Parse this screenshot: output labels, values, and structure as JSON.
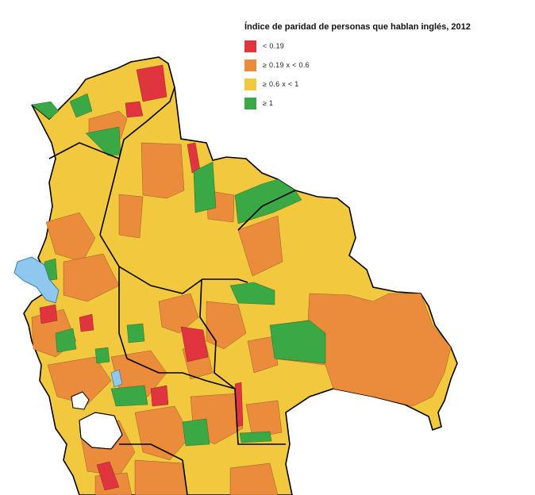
{
  "legend": {
    "title": "Índice de paridad de personas que hablan inglés, 2012",
    "items": [
      {
        "label": "< 0.19",
        "color": "#e0353f"
      },
      {
        "label": "≥ 0.19 x < 0.6",
        "color": "#eb8c3c"
      },
      {
        "label": "≥ 0.6 x < 1",
        "color": "#f2c93e"
      },
      {
        "label": "≥ 1",
        "color": "#3aa845"
      }
    ]
  },
  "colors": {
    "red": "#e0353f",
    "orange": "#eb8c3c",
    "yellow": "#f2c93e",
    "green": "#3aa845",
    "lake": "#8fc8ef",
    "border": "#000000"
  }
}
